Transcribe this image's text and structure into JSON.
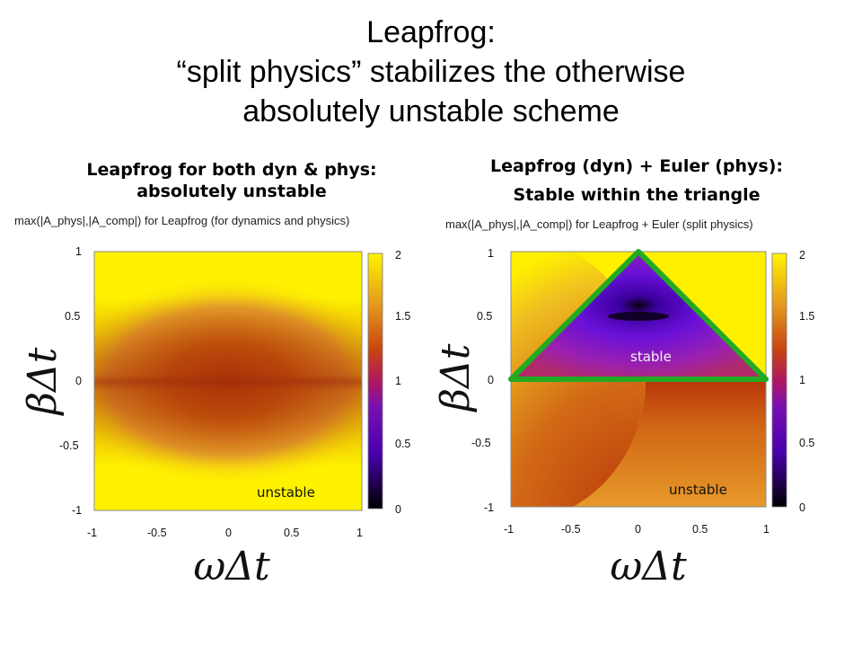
{
  "slide": {
    "title_lines": [
      "Leapfrog:",
      "“split physics” stabilizes the otherwise",
      "absolutely unstable scheme"
    ]
  },
  "panels": {
    "left": {
      "heading_lines": [
        "Leapfrog for both dyn & phys:",
        "absolutely unstable"
      ],
      "annotation": "unstable"
    },
    "right": {
      "heading_lines": [
        "Leapfrog (dyn) + Euler (phys):",
        "Stable within the triangle"
      ],
      "annotation_stable": "stable",
      "annotation_unstable": "unstable",
      "stability_triangle_color": "#22aa22"
    }
  },
  "chart_data": [
    {
      "type": "heatmap",
      "title": "max(|A_phys|,|A_comp|) for Leapfrog (for dynamics and physics)",
      "xlabel": "ωΔt",
      "ylabel": "βΔt",
      "xlim": [
        -1,
        1
      ],
      "ylim": [
        -1,
        1
      ],
      "xticks": [
        "-1",
        "-0.5",
        "0",
        "0.5",
        "1"
      ],
      "yticks": [
        "1",
        "0.5",
        "0",
        "-0.5",
        "-1"
      ],
      "colorbar": {
        "range": [
          0,
          2
        ],
        "ticks": [
          "2",
          "1.5",
          "1",
          "0.5",
          "0"
        ],
        "colormap": [
          "#000000",
          "#5a00c8",
          "#a0147a",
          "#be3c0a",
          "#e0881a",
          "#fff000"
        ]
      },
      "annotations": [
        "unstable"
      ]
    },
    {
      "type": "heatmap",
      "title": "max(|A_phys|,|A_comp|) for Leapfrog + Euler (split physics)",
      "xlabel": "ωΔt",
      "ylabel": "βΔt",
      "xlim": [
        -1,
        1
      ],
      "ylim": [
        -1,
        1
      ],
      "xticks": [
        "-1",
        "-0.5",
        "0",
        "0.5",
        "1"
      ],
      "yticks": [
        "1",
        "0.5",
        "0",
        "-0.5",
        "-1"
      ],
      "colorbar": {
        "range": [
          0,
          2
        ],
        "ticks": [
          "2",
          "1.5",
          "1",
          "0.5",
          "0"
        ],
        "colormap": [
          "#000000",
          "#5a00c8",
          "#a0147a",
          "#be3c0a",
          "#e0881a",
          "#fff000"
        ]
      },
      "stability_region": {
        "shape": "triangle",
        "vertices": [
          [
            -1,
            0
          ],
          [
            0,
            1
          ],
          [
            1,
            0
          ]
        ]
      },
      "annotations": [
        "stable",
        "unstable"
      ]
    }
  ]
}
